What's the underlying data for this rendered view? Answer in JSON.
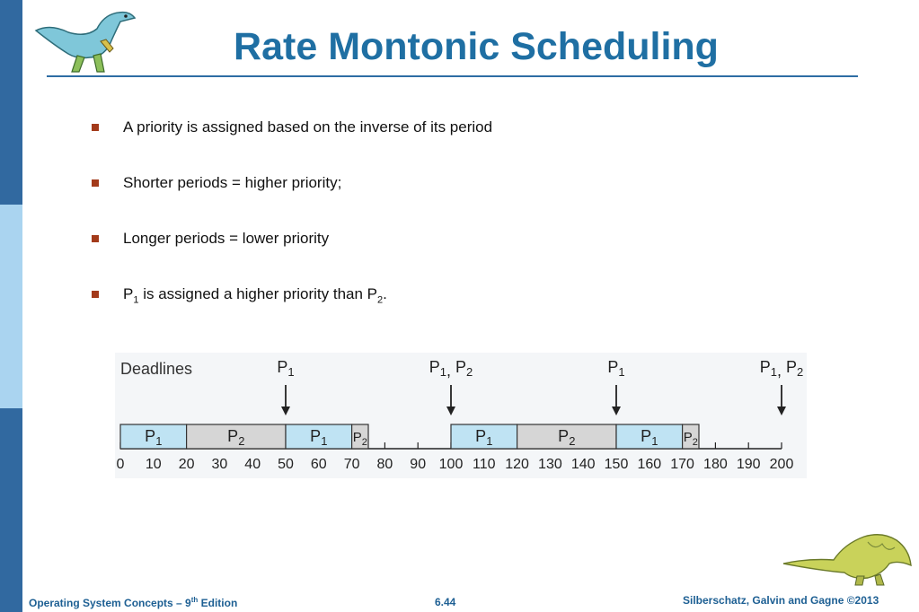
{
  "title": "Rate Montonic Scheduling",
  "bullets": [
    {
      "text": "A priority is assigned based on the inverse of its period"
    },
    {
      "text": "Shorter periods = higher priority;"
    },
    {
      "text": "Longer periods = lower priority"
    },
    {
      "p1_main": "P",
      "p1_sub": "1",
      "middle": " is assigned a higher priority than ",
      "p2_main": "P",
      "p2_sub": "2",
      "end": "."
    }
  ],
  "figure": {
    "deadlines_label": "Deadlines",
    "deadlines": [
      {
        "time": 50,
        "procs": [
          "1"
        ]
      },
      {
        "time": 100,
        "procs": [
          "1",
          "2"
        ]
      },
      {
        "time": 150,
        "procs": [
          "1"
        ]
      },
      {
        "time": 200,
        "procs": [
          "1",
          "2"
        ]
      }
    ],
    "segments": [
      {
        "start": 0,
        "end": 20,
        "proc": "1"
      },
      {
        "start": 20,
        "end": 50,
        "proc": "2"
      },
      {
        "start": 50,
        "end": 70,
        "proc": "1"
      },
      {
        "start": 70,
        "end": 75,
        "proc": "2"
      },
      {
        "start": 100,
        "end": 120,
        "proc": "1"
      },
      {
        "start": 120,
        "end": 150,
        "proc": "2"
      },
      {
        "start": 150,
        "end": 170,
        "proc": "1"
      },
      {
        "start": 170,
        "end": 175,
        "proc": "2"
      }
    ],
    "ticks": [
      0,
      10,
      20,
      30,
      40,
      50,
      60,
      70,
      80,
      90,
      100,
      110,
      120,
      130,
      140,
      150,
      160,
      170,
      180,
      190,
      200
    ],
    "colors": {
      "p1": "#bfe3f3",
      "p2": "#d6d6d6"
    }
  },
  "footer": {
    "left_main": "Operating System Concepts – 9",
    "left_sup": "th",
    "left_end": " Edition",
    "middle": "6.44",
    "right": "Silberschatz, Galvin and Gagne ©2013"
  },
  "colors": {
    "title": "#1f6fa3",
    "bullet": "#a33a1a",
    "sidebar": "#3169a0",
    "sidebar_light": "#aad4f0"
  }
}
